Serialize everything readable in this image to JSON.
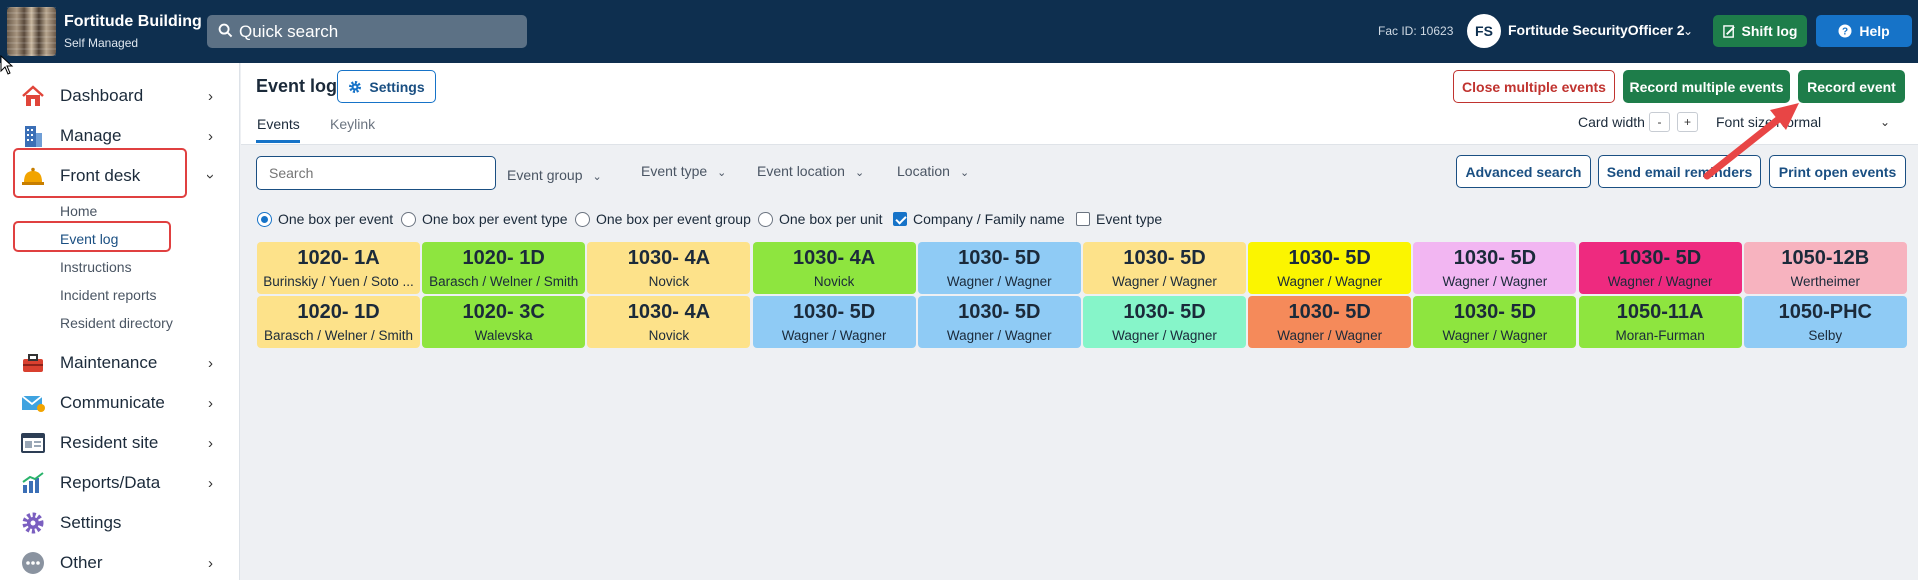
{
  "topbar": {
    "brand_name": "Fortitude Building",
    "brand_sub": "Self Managed",
    "quick_search_placeholder": "Quick search",
    "fac_id": "Fac ID: 10623",
    "user_initials": "FS",
    "user_name": "Fortitude SecurityOfficer 2",
    "shift_log_label": "Shift log",
    "help_label": "Help"
  },
  "sidebar": {
    "items": [
      {
        "label": "Dashboard"
      },
      {
        "label": "Manage"
      },
      {
        "label": "Front desk"
      },
      {
        "label": "Maintenance"
      },
      {
        "label": "Communicate"
      },
      {
        "label": "Resident site"
      },
      {
        "label": "Reports/Data"
      },
      {
        "label": "Settings"
      },
      {
        "label": "Other"
      }
    ],
    "subitems": [
      {
        "label": "Home"
      },
      {
        "label": "Event log"
      },
      {
        "label": "Instructions"
      },
      {
        "label": "Incident reports"
      },
      {
        "label": "Resident directory"
      }
    ]
  },
  "header": {
    "title": "Event log",
    "settings_label": "Settings",
    "tabs": [
      {
        "label": "Events"
      },
      {
        "label": "Keylink"
      }
    ],
    "close_multiple_label": "Close multiple events",
    "record_multiple_label": "Record multiple events",
    "record_event_label": "Record event",
    "card_width_label": "Card width",
    "minus": "-",
    "plus": "+",
    "font_size_label": "Font size",
    "font_size_value": "Normal"
  },
  "filters": {
    "search_placeholder": "Search",
    "event_group": "Event group",
    "event_type": "Event type",
    "event_location": "Event location",
    "location": "Location",
    "advanced_search": "Advanced search",
    "send_email_reminders": "Send email reminders",
    "print_open_events": "Print open events"
  },
  "options": {
    "one_box_per_event": "One box per event",
    "one_box_per_event_type": "One box per event type",
    "one_box_per_event_group": "One box per event group",
    "one_box_per_unit": "One box per unit",
    "company_family_name": "Company / Family name",
    "event_type": "Event type",
    "selected": "one_box_per_event",
    "company_family_checked": true,
    "event_type_checked": false
  },
  "cards": [
    {
      "unit": "1020- 1A",
      "name": "Burinskiy / Yuen / Soto ...",
      "color": "#fde28a"
    },
    {
      "unit": "1020- 1D",
      "name": "Barasch / Welner / Smith",
      "color": "#8ee53f"
    },
    {
      "unit": "1030- 4A",
      "name": "Novick",
      "color": "#fde28a"
    },
    {
      "unit": "1030- 4A",
      "name": "Novick",
      "color": "#8ee53f"
    },
    {
      "unit": "1030- 5D",
      "name": "Wagner / Wagner",
      "color": "#8fcbf5"
    },
    {
      "unit": "1030- 5D",
      "name": "Wagner / Wagner",
      "color": "#fde28a"
    },
    {
      "unit": "1030- 5D",
      "name": "Wagner / Wagner",
      "color": "#fbf500"
    },
    {
      "unit": "1030- 5D",
      "name": "Wagner / Wagner",
      "color": "#f2b6f2"
    },
    {
      "unit": "1030- 5D",
      "name": "Wagner / Wagner",
      "color": "#ee2a7f"
    },
    {
      "unit": "1050-12B",
      "name": "Wertheimer",
      "color": "#f7b3bf"
    },
    {
      "unit": "1020- 1D",
      "name": "Barasch / Welner / Smith",
      "color": "#fde28a"
    },
    {
      "unit": "1020- 3C",
      "name": "Walevska",
      "color": "#8ee53f"
    },
    {
      "unit": "1030- 4A",
      "name": "Novick",
      "color": "#fde28a"
    },
    {
      "unit": "1030- 5D",
      "name": "Wagner / Wagner",
      "color": "#8fcbf5"
    },
    {
      "unit": "1030- 5D",
      "name": "Wagner / Wagner",
      "color": "#8fcbf5"
    },
    {
      "unit": "1030- 5D",
      "name": "Wagner / Wagner",
      "color": "#86f5c9"
    },
    {
      "unit": "1030- 5D",
      "name": "Wagner / Wagner",
      "color": "#f58a5a"
    },
    {
      "unit": "1030- 5D",
      "name": "Wagner / Wagner",
      "color": "#8ee53f"
    },
    {
      "unit": "1050-11A",
      "name": "Moran-Furman",
      "color": "#8ee53f"
    },
    {
      "unit": "1050-PHC",
      "name": "Selby",
      "color": "#8fcbf5"
    }
  ],
  "colors": {
    "topbar": "#0e2f4f",
    "primary_green": "#1e7d4a",
    "primary_blue": "#1673c8",
    "danger": "#c0332f",
    "highlight": "#e04040"
  }
}
